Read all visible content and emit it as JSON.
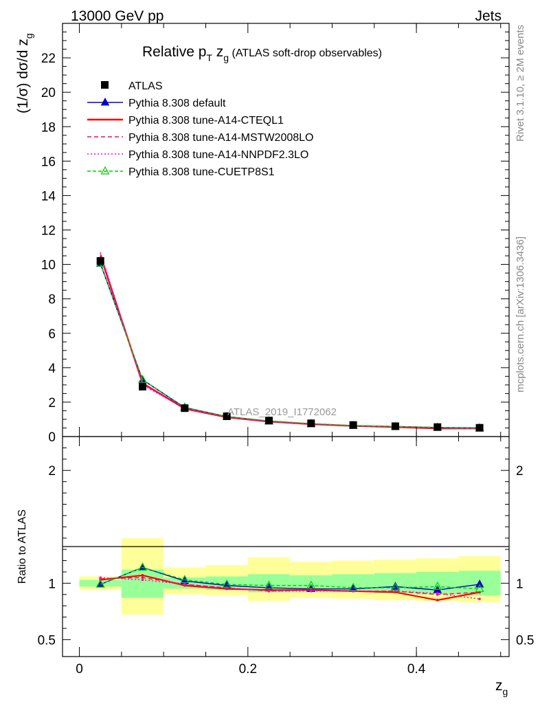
{
  "header": {
    "left": "13000 GeV pp",
    "right": "Jets"
  },
  "side_labels": {
    "rivet": "Rivet 3.1.10, ≥ 2M events",
    "mcplots": "mcplots.cern.ch [arXiv:1306.3436]"
  },
  "watermark": "ATLAS_2019_I1772062",
  "chart_data": {
    "type": "line",
    "title": {
      "main": "Relative p",
      "main_sub": "T",
      "main_tail": " z",
      "main_tail_sub": "g",
      "small": " (ATLAS soft-drop observables)"
    },
    "ylabel_main": "(1/σ) dσ/d z",
    "ylabel_sub": "g",
    "ratio_ylabel": "Ratio to ATLAS",
    "xlabel": "z",
    "xlabel_sub": "g",
    "xlim": [
      -0.02,
      0.51
    ],
    "ylim": [
      0,
      24
    ],
    "ratio_ylim": [
      0.35,
      2.3
    ],
    "x_ticks": [
      {
        "v": 0,
        "label": "0"
      },
      {
        "v": 0.2,
        "label": "0.2"
      },
      {
        "v": 0.4,
        "label": "0.4"
      }
    ],
    "y_ticks": [
      {
        "v": 0,
        "label": "0"
      },
      {
        "v": 2,
        "label": "2"
      },
      {
        "v": 4,
        "label": "4"
      },
      {
        "v": 6,
        "label": "6"
      },
      {
        "v": 8,
        "label": "8"
      },
      {
        "v": 10,
        "label": "10"
      },
      {
        "v": 12,
        "label": "12"
      },
      {
        "v": 14,
        "label": "14"
      },
      {
        "v": 16,
        "label": "16"
      },
      {
        "v": 18,
        "label": "18"
      },
      {
        "v": 20,
        "label": "20"
      },
      {
        "v": 22,
        "label": "22"
      }
    ],
    "ratio_ticks": [
      {
        "v": 0.5,
        "label": "0.5"
      },
      {
        "v": 1,
        "label": "1"
      },
      {
        "v": 2,
        "label": "2"
      }
    ],
    "bins": [
      [
        0.0,
        0.05
      ],
      [
        0.05,
        0.1
      ],
      [
        0.1,
        0.15
      ],
      [
        0.15,
        0.2
      ],
      [
        0.2,
        0.25
      ],
      [
        0.25,
        0.3
      ],
      [
        0.3,
        0.35
      ],
      [
        0.35,
        0.4
      ],
      [
        0.4,
        0.45
      ],
      [
        0.45,
        0.5
      ]
    ],
    "x": [
      0.025,
      0.075,
      0.125,
      0.175,
      0.225,
      0.275,
      0.325,
      0.375,
      0.425,
      0.475
    ],
    "data": {
      "name": "ATLAS",
      "values": [
        10.2,
        2.9,
        1.65,
        1.18,
        0.93,
        0.77,
        0.67,
        0.6,
        0.55,
        0.51
      ],
      "band_inner": [
        [
          0.97,
          1.03
        ],
        [
          0.87,
          1.12
        ],
        [
          0.95,
          1.05
        ],
        [
          0.94,
          1.06
        ],
        [
          0.92,
          1.08
        ],
        [
          0.93,
          1.07
        ],
        [
          0.92,
          1.08
        ],
        [
          0.91,
          1.09
        ],
        [
          0.9,
          1.1
        ],
        [
          0.89,
          1.11
        ]
      ],
      "band_outer": [
        [
          0.94,
          1.06
        ],
        [
          0.72,
          1.4
        ],
        [
          0.9,
          1.14
        ],
        [
          0.89,
          1.16
        ],
        [
          0.84,
          1.23
        ],
        [
          0.87,
          1.19
        ],
        [
          0.86,
          1.2
        ],
        [
          0.85,
          1.21
        ],
        [
          0.84,
          1.22
        ],
        [
          0.83,
          1.24
        ]
      ]
    },
    "series": [
      {
        "name": "Pythia 8.308 default",
        "color": "#0000cc",
        "dash": "",
        "marker": "triangle-filled",
        "values": [
          10.05,
          3.3,
          1.68,
          1.16,
          0.89,
          0.73,
          0.63,
          0.58,
          0.52,
          0.5
        ],
        "ratio": [
          0.99,
          1.14,
          1.02,
          0.98,
          0.96,
          0.95,
          0.95,
          0.97,
          0.94,
          0.99
        ]
      },
      {
        "name": "Pythia 8.308 tune-A14-CTEQL1",
        "color": "#ff0000",
        "dash": "",
        "marker": "",
        "values": [
          10.5,
          3.1,
          1.62,
          1.12,
          0.87,
          0.72,
          0.62,
          0.55,
          0.47,
          0.47
        ],
        "ratio": [
          1.03,
          1.07,
          0.98,
          0.95,
          0.94,
          0.94,
          0.93,
          0.92,
          0.85,
          0.92
        ]
      },
      {
        "name": "Pythia 8.308 tune-A14-MSTW2008LO",
        "color": "#ff0066",
        "dash": "6,4",
        "marker": "",
        "values": [
          10.6,
          3.05,
          1.63,
          1.13,
          0.86,
          0.72,
          0.62,
          0.56,
          0.5,
          0.47
        ],
        "ratio": [
          1.04,
          1.05,
          0.99,
          0.96,
          0.93,
          0.94,
          0.93,
          0.93,
          0.9,
          0.92
        ]
      },
      {
        "name": "Pythia 8.308 tune-A14-NNPDF2.3LO",
        "color": "#ff00cc",
        "dash": "2,3",
        "marker": "",
        "values": [
          10.7,
          3.0,
          1.63,
          1.13,
          0.86,
          0.71,
          0.62,
          0.56,
          0.5,
          0.44
        ],
        "ratio": [
          1.05,
          1.03,
          0.99,
          0.96,
          0.93,
          0.93,
          0.93,
          0.93,
          0.91,
          0.86
        ]
      },
      {
        "name": "Pythia 8.308 tune-CUETP8S1",
        "color": "#00cc00",
        "dash": "5,3",
        "marker": "triangle-open",
        "values": [
          10.05,
          3.3,
          1.7,
          1.16,
          0.91,
          0.75,
          0.64,
          0.58,
          0.53,
          0.48
        ],
        "ratio": [
          0.99,
          1.14,
          1.03,
          0.99,
          0.98,
          0.98,
          0.96,
          0.96,
          0.97,
          0.95
        ]
      }
    ]
  }
}
